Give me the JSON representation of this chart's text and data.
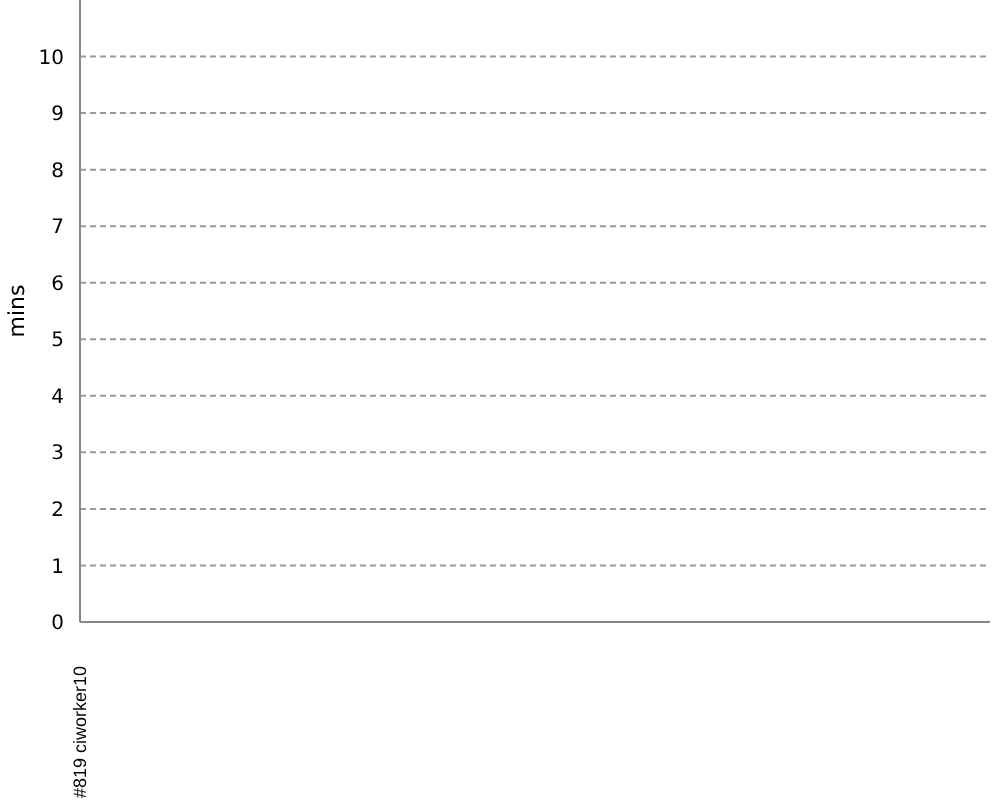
{
  "chart_data": {
    "type": "line",
    "ylabel": "mins",
    "categories": [
      "#819 ciworker10"
    ],
    "values": [
      null
    ],
    "ylim": [
      0,
      11
    ],
    "yticks": [
      0,
      1,
      2,
      3,
      4,
      5,
      6,
      7,
      8,
      9,
      10
    ],
    "grid": "y"
  }
}
